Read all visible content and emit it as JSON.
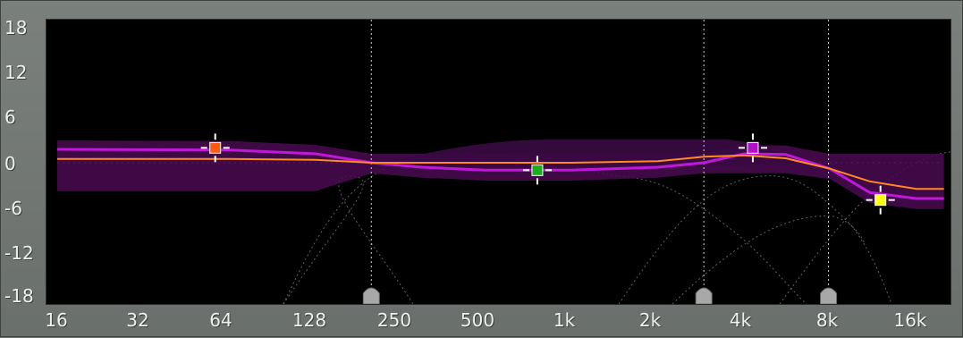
{
  "eq_display": {
    "y_axis": {
      "labels": [
        "18",
        "12",
        "6",
        "0",
        "-6",
        "-12",
        "-18"
      ],
      "values": [
        18,
        12,
        6,
        0,
        -6,
        -12,
        -18
      ],
      "unit": ""
    },
    "x_axis": {
      "labels": [
        "16",
        "32",
        "64",
        "128",
        "250",
        "500",
        "1k",
        "2k",
        "4k",
        "8k",
        "16k"
      ],
      "values": [
        16,
        32,
        64,
        128,
        250,
        500,
        1000,
        2000,
        4000,
        8000,
        16000
      ],
      "scale": "log"
    },
    "colors": {
      "background": "#000000",
      "frame": "#6e7370",
      "response_curve": "#ff8a1e",
      "band_curve": "#c018d8",
      "band_fill": "#4a0a52",
      "guide_lines": "#8a8a8a"
    },
    "marker_lines_hz": [
      200,
      2900,
      7900
    ],
    "band_nodes": [
      {
        "name": "band-1",
        "freq_hz": 57,
        "gain_db": 2,
        "color": "#ff5a10"
      },
      {
        "name": "band-2",
        "freq_hz": 760,
        "gain_db": -1,
        "color": "#18b018"
      },
      {
        "name": "band-3",
        "freq_hz": 4300,
        "gain_db": 2,
        "color": "#b010c8"
      },
      {
        "name": "band-4",
        "freq_hz": 12000,
        "gain_db": -5,
        "color": "#ffff10"
      }
    ],
    "response_curve_db": [
      [
        16,
        0.5
      ],
      [
        64,
        0.5
      ],
      [
        128,
        0.4
      ],
      [
        200,
        0.0
      ],
      [
        500,
        0.0
      ],
      [
        1000,
        0.0
      ],
      [
        2000,
        0.2
      ],
      [
        2900,
        0.8
      ],
      [
        4000,
        1.0
      ],
      [
        5600,
        0.6
      ],
      [
        8000,
        -0.8
      ],
      [
        11000,
        -2.5
      ],
      [
        16000,
        -3.5
      ],
      [
        20000,
        -3.5
      ]
    ],
    "band_curve_db": [
      [
        16,
        1.8
      ],
      [
        64,
        1.7
      ],
      [
        128,
        1.2
      ],
      [
        200,
        0.0
      ],
      [
        300,
        -0.6
      ],
      [
        500,
        -1.0
      ],
      [
        1000,
        -1.0
      ],
      [
        2000,
        -0.6
      ],
      [
        2900,
        0.0
      ],
      [
        4000,
        1.2
      ],
      [
        5600,
        1.1
      ],
      [
        8000,
        -0.8
      ],
      [
        11000,
        -4.0
      ],
      [
        16000,
        -4.8
      ],
      [
        20000,
        -4.8
      ]
    ]
  }
}
